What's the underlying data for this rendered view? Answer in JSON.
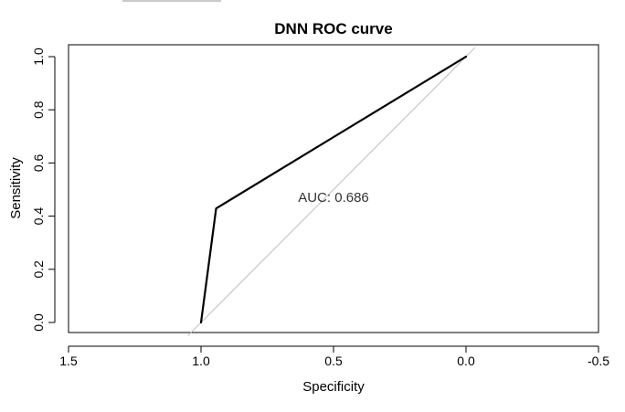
{
  "chart_data": {
    "type": "line",
    "title": "DNN ROC curve",
    "xlabel": "Specificity",
    "ylabel": "Sensitivity",
    "xlim": [
      1.5,
      -0.5
    ],
    "ylim": [
      0.0,
      1.0
    ],
    "x_ticks": [
      1.5,
      1.0,
      0.5,
      0.0,
      -0.5
    ],
    "x_tick_labels": [
      "1.5",
      "1.0",
      "0.5",
      "0.0",
      "-0.5"
    ],
    "y_ticks": [
      0.0,
      0.2,
      0.4,
      0.6,
      0.8,
      1.0
    ],
    "y_tick_labels": [
      "0.0",
      "0.2",
      "0.4",
      "0.6",
      "0.8",
      "1.0"
    ],
    "x_reversed": true,
    "grid": false,
    "series": [
      {
        "x": [
          1.0,
          0.943,
          0.0
        ],
        "y": [
          0.0,
          0.429,
          1.0
        ],
        "color": "#000000"
      }
    ],
    "reference_line": {
      "slope_desc": "diagonal",
      "color": "#bebebe"
    },
    "annotations": [
      {
        "text": "AUC: 0.686",
        "x": 0.5,
        "y": 0.47
      }
    ]
  }
}
